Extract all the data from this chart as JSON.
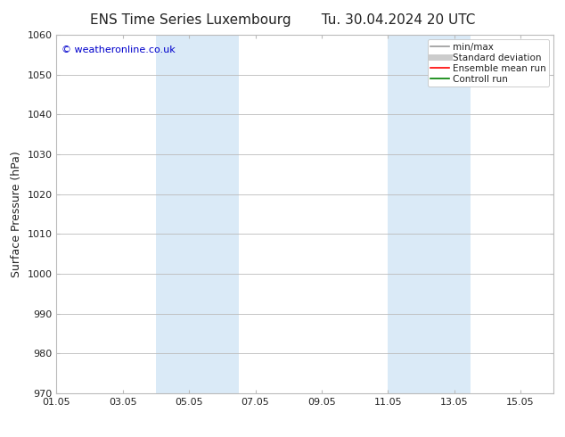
{
  "title_left": "ENS Time Series Luxembourg",
  "title_right": "Tu. 30.04.2024 20 UTC",
  "ylabel": "Surface Pressure (hPa)",
  "ylim": [
    970,
    1060
  ],
  "yticks": [
    970,
    980,
    990,
    1000,
    1010,
    1020,
    1030,
    1040,
    1050,
    1060
  ],
  "xlim_start": 0,
  "xlim_end": 15,
  "xtick_labels": [
    "01.05",
    "03.05",
    "05.05",
    "07.05",
    "09.05",
    "11.05",
    "13.05",
    "15.05"
  ],
  "xtick_positions": [
    0,
    2,
    4,
    6,
    8,
    10,
    12,
    14
  ],
  "shaded_bands": [
    {
      "x_start": 3.0,
      "x_end": 5.5
    },
    {
      "x_start": 10.0,
      "x_end": 12.5
    }
  ],
  "shaded_color": "#daeaf7",
  "watermark_text": "© weatheronline.co.uk",
  "watermark_color": "#0000cc",
  "legend_items": [
    {
      "label": "min/max",
      "color": "#999999",
      "lw": 1.2,
      "ls": "-"
    },
    {
      "label": "Standard deviation",
      "color": "#cccccc",
      "lw": 5,
      "ls": "-"
    },
    {
      "label": "Ensemble mean run",
      "color": "#ff0000",
      "lw": 1.2,
      "ls": "-"
    },
    {
      "label": "Controll run",
      "color": "#008000",
      "lw": 1.2,
      "ls": "-"
    }
  ],
  "grid_color": "#bbbbbb",
  "bg_color": "#ffffff",
  "font_color": "#222222",
  "title_fontsize": 11,
  "axis_label_fontsize": 9,
  "tick_fontsize": 8,
  "legend_fontsize": 7.5,
  "watermark_fontsize": 8
}
